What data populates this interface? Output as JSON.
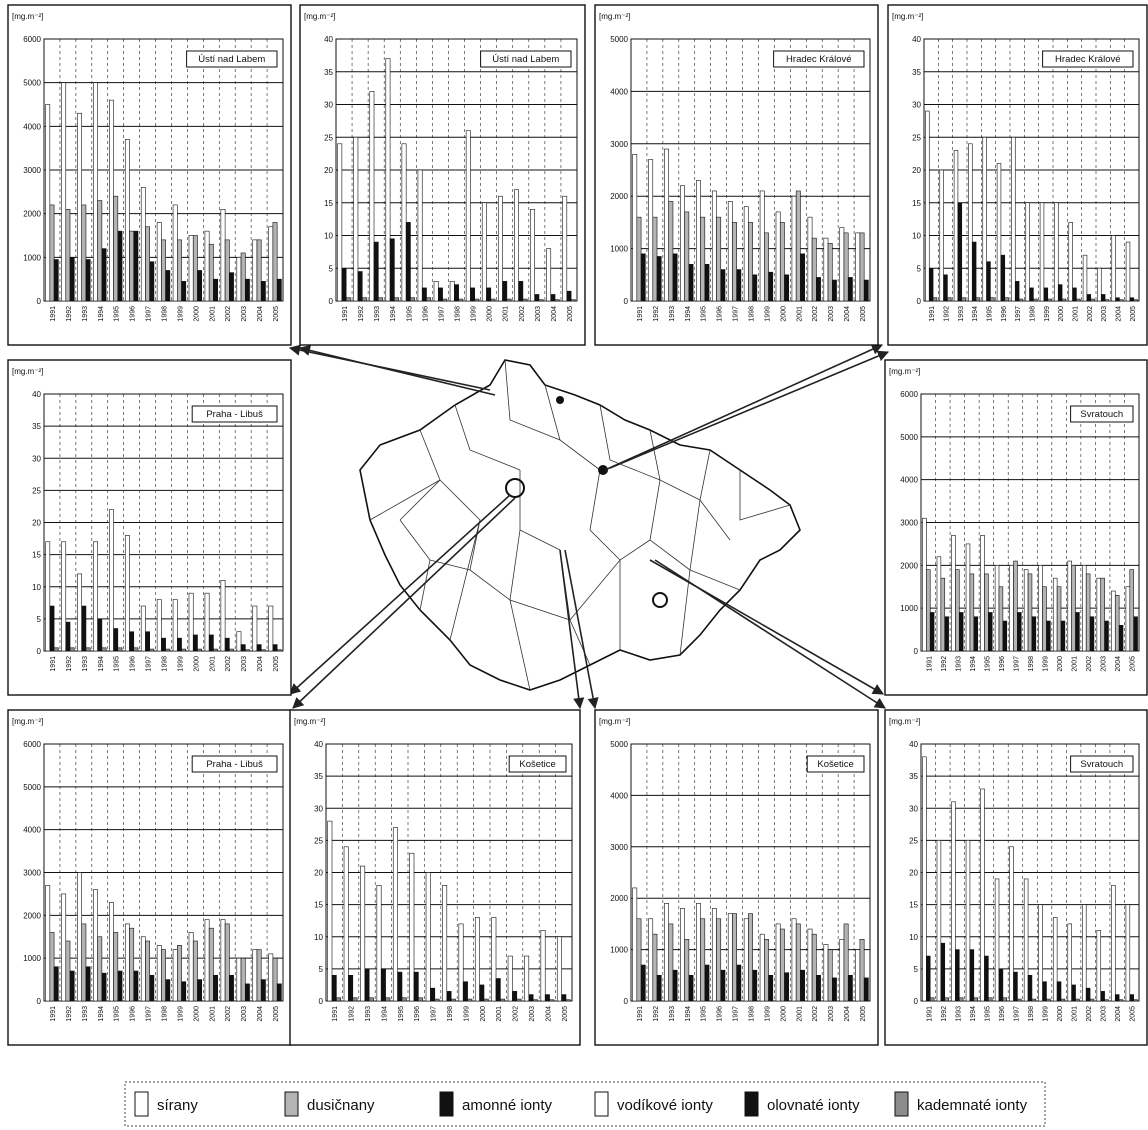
{
  "charts": [
    {
      "type": "bar",
      "title": "Ústí nad Labem",
      "ylabel": "[mg.m⁻²]",
      "ylim": [
        0,
        6000
      ],
      "yticks": [
        0,
        1000,
        2000,
        3000,
        4000,
        5000,
        6000
      ],
      "grid": true,
      "legend_items": [
        0,
        1,
        2
      ],
      "categories": [
        "1991",
        "1992",
        "1993",
        "1994",
        "1995",
        "1996",
        "1997",
        "1998",
        "1999",
        "2000",
        "2001",
        "2002",
        "2003",
        "2004",
        "2005"
      ],
      "series": [
        {
          "values": [
            4500,
            5000,
            4300,
            5000,
            4600,
            3700,
            2600,
            1800,
            2200,
            1500,
            1600,
            2100,
            1000,
            1400,
            1700
          ]
        },
        {
          "values": [
            2200,
            2100,
            2200,
            2300,
            2400,
            1600,
            1700,
            1400,
            1400,
            1500,
            1300,
            1400,
            1100,
            1400,
            1800
          ]
        },
        {
          "values": [
            950,
            1000,
            950,
            1200,
            1600,
            1600,
            900,
            700,
            450,
            700,
            500,
            650,
            500,
            450,
            500
          ]
        }
      ]
    },
    {
      "type": "bar",
      "title": "Ústí nad Labem",
      "ylabel": "[mg.m⁻²]",
      "ylim": [
        0,
        40
      ],
      "yticks": [
        0,
        5,
        10,
        15,
        20,
        25,
        30,
        35,
        40
      ],
      "grid": true,
      "legend_items": [
        3,
        4,
        5
      ],
      "categories": [
        "1991",
        "1992",
        "1993",
        "1994",
        "1995",
        "1996",
        "1997",
        "1998",
        "1999",
        "2000",
        "2001",
        "2002",
        "2003",
        "2004",
        "2005"
      ],
      "series": [
        {
          "values": [
            24,
            25,
            32,
            37,
            24,
            20,
            3,
            3,
            26,
            15,
            16,
            17,
            14,
            8,
            16
          ]
        },
        {
          "values": [
            5,
            4.5,
            9,
            9.5,
            12,
            2,
            2,
            2.5,
            2,
            2,
            3,
            3,
            1,
            1,
            1.5
          ]
        },
        {
          "values": [
            0.5,
            0.5,
            0.5,
            0.5,
            0.5,
            0.5,
            0.3,
            0.3,
            0.3,
            0.3,
            0.3,
            0.3,
            0.2,
            0.2,
            0.2
          ]
        }
      ]
    },
    {
      "type": "bar",
      "title": "Hradec Králové",
      "ylabel": "[mg.m⁻²]",
      "ylim": [
        0,
        5000
      ],
      "yticks": [
        0,
        1000,
        2000,
        3000,
        4000,
        5000
      ],
      "grid": true,
      "legend_items": [
        0,
        1,
        2
      ],
      "categories": [
        "1991",
        "1992",
        "1993",
        "1994",
        "1995",
        "1996",
        "1997",
        "1998",
        "1999",
        "2000",
        "2001",
        "2002",
        "2003",
        "2004",
        "2005"
      ],
      "series": [
        {
          "values": [
            2800,
            2700,
            2900,
            2200,
            2300,
            2100,
            1900,
            1800,
            2100,
            1700,
            2000,
            1600,
            1200,
            1400,
            1300
          ]
        },
        {
          "values": [
            1600,
            1600,
            1900,
            1700,
            1600,
            1600,
            1500,
            1500,
            1300,
            1500,
            2100,
            1200,
            1100,
            1300,
            1300
          ]
        },
        {
          "values": [
            900,
            850,
            900,
            700,
            700,
            600,
            600,
            500,
            550,
            500,
            900,
            450,
            400,
            450,
            400
          ]
        }
      ]
    },
    {
      "type": "bar",
      "title": "Hradec Králové",
      "ylabel": "[mg.m⁻²]",
      "ylim": [
        0,
        40
      ],
      "yticks": [
        0,
        5,
        10,
        15,
        20,
        25,
        30,
        35,
        40
      ],
      "grid": true,
      "legend_items": [
        3,
        4,
        5
      ],
      "categories": [
        "1991",
        "1992",
        "1993",
        "1994",
        "1995",
        "1996",
        "1997",
        "1998",
        "1999",
        "2000",
        "2001",
        "2002",
        "2003",
        "2004",
        "2005"
      ],
      "series": [
        {
          "values": [
            29,
            20,
            23,
            24,
            25,
            21,
            25,
            15,
            15,
            15,
            12,
            7,
            5,
            10,
            9
          ]
        },
        {
          "values": [
            5,
            4,
            15,
            9,
            6,
            7,
            3,
            2,
            2,
            2.5,
            2,
            1,
            1,
            0.5,
            0.5
          ]
        },
        {
          "values": [
            0.5,
            0.5,
            0.5,
            0.5,
            0.5,
            0.5,
            0.3,
            0.3,
            0.3,
            0.3,
            0.3,
            0.3,
            0.2,
            0.2,
            0.2
          ]
        }
      ]
    },
    {
      "type": "bar",
      "title": "Praha - Libuš",
      "ylabel": "[mg.m⁻²]",
      "ylim": [
        0,
        40
      ],
      "yticks": [
        0,
        5,
        10,
        15,
        20,
        25,
        30,
        35,
        40
      ],
      "grid": true,
      "legend_items": [
        3,
        4,
        5
      ],
      "categories": [
        "1991",
        "1992",
        "1993",
        "1994",
        "1995",
        "1996",
        "1997",
        "1998",
        "1999",
        "2000",
        "2001",
        "2002",
        "2003",
        "2004",
        "2005"
      ],
      "series": [
        {
          "values": [
            17,
            17,
            12,
            17,
            22,
            18,
            7,
            8,
            8,
            9,
            9,
            11,
            3,
            7,
            7
          ]
        },
        {
          "values": [
            7,
            4.5,
            7,
            5,
            3.5,
            3,
            3,
            2,
            2,
            2.5,
            2.5,
            2,
            1,
            1,
            1
          ]
        },
        {
          "values": [
            0.5,
            0.5,
            0.5,
            0.5,
            0.5,
            0.5,
            0.3,
            0.3,
            0.3,
            0.3,
            0.3,
            0.3,
            0.2,
            0.2,
            0.2
          ]
        }
      ]
    },
    {
      "type": "bar",
      "title": "Svratouch",
      "ylabel": "[mg.m⁻²]",
      "ylim": [
        0,
        6000
      ],
      "yticks": [
        0,
        1000,
        2000,
        3000,
        4000,
        5000,
        6000
      ],
      "grid": true,
      "legend_items": [
        0,
        1,
        2
      ],
      "categories": [
        "1991",
        "1992",
        "1993",
        "1994",
        "1995",
        "1996",
        "1997",
        "1998",
        "1999",
        "2000",
        "2001",
        "2002",
        "2003",
        "2004",
        "2005"
      ],
      "series": [
        {
          "values": [
            3100,
            2200,
            2700,
            2500,
            2700,
            2000,
            2000,
            1900,
            2000,
            1700,
            2100,
            2000,
            1700,
            1400,
            1500
          ]
        },
        {
          "values": [
            1900,
            1700,
            1900,
            1800,
            1800,
            1500,
            2100,
            1800,
            1500,
            1500,
            2000,
            1800,
            1700,
            1300,
            1900
          ]
        },
        {
          "values": [
            900,
            800,
            900,
            800,
            900,
            700,
            900,
            800,
            700,
            700,
            900,
            800,
            700,
            600,
            800
          ]
        }
      ]
    },
    {
      "type": "bar",
      "title": "Praha - Libuš",
      "ylabel": "[mg.m⁻²]",
      "ylim": [
        0,
        6000
      ],
      "yticks": [
        0,
        1000,
        2000,
        3000,
        4000,
        5000,
        6000
      ],
      "grid": true,
      "legend_items": [
        0,
        1,
        2
      ],
      "categories": [
        "1991",
        "1992",
        "1993",
        "1994",
        "1995",
        "1996",
        "1997",
        "1998",
        "1999",
        "2000",
        "2001",
        "2002",
        "2003",
        "2004",
        "2005"
      ],
      "series": [
        {
          "values": [
            2700,
            2500,
            3000,
            2600,
            2300,
            1800,
            1500,
            1300,
            1200,
            1600,
            1900,
            1900,
            1000,
            1200,
            1100
          ]
        },
        {
          "values": [
            1600,
            1400,
            1800,
            1500,
            1600,
            1700,
            1400,
            1200,
            1300,
            1400,
            1700,
            1800,
            1000,
            1200,
            1000
          ]
        },
        {
          "values": [
            800,
            700,
            800,
            650,
            700,
            700,
            600,
            500,
            450,
            500,
            600,
            600,
            400,
            500,
            400
          ]
        }
      ]
    },
    {
      "type": "bar",
      "title": "Košetice",
      "ylabel": "[mg.m⁻²]",
      "ylim": [
        0,
        40
      ],
      "yticks": [
        0,
        5,
        10,
        15,
        20,
        25,
        30,
        35,
        40
      ],
      "grid": true,
      "legend_items": [
        3,
        4,
        5
      ],
      "categories": [
        "1991",
        "1992",
        "1993",
        "1994",
        "1995",
        "1996",
        "1997",
        "1998",
        "1999",
        "2000",
        "2001",
        "2002",
        "2003",
        "2004",
        "2005"
      ],
      "series": [
        {
          "values": [
            28,
            24,
            21,
            18,
            27,
            23,
            20,
            18,
            12,
            13,
            13,
            7,
            7,
            11,
            10
          ]
        },
        {
          "values": [
            4,
            4,
            5,
            5,
            4.5,
            4.5,
            2,
            1.5,
            3,
            2.5,
            3.5,
            1.5,
            1,
            1,
            1
          ]
        },
        {
          "values": [
            0.5,
            0.5,
            0.5,
            0.5,
            0.5,
            0.5,
            0.3,
            0.3,
            0.3,
            0.3,
            0.3,
            0.3,
            0.2,
            0.2,
            0.2
          ]
        }
      ]
    },
    {
      "type": "bar",
      "title": "Košetice",
      "ylabel": "[mg.m⁻²]",
      "ylim": [
        0,
        5000
      ],
      "yticks": [
        0,
        1000,
        2000,
        3000,
        4000,
        5000
      ],
      "grid": true,
      "legend_items": [
        0,
        1,
        2
      ],
      "categories": [
        "1991",
        "1992",
        "1993",
        "1994",
        "1995",
        "1996",
        "1997",
        "1998",
        "1999",
        "2000",
        "2001",
        "2002",
        "2003",
        "2004",
        "2005"
      ],
      "series": [
        {
          "values": [
            2200,
            1600,
            1900,
            1800,
            1900,
            1800,
            1700,
            1600,
            1300,
            1500,
            1600,
            1400,
            1100,
            1200,
            1000
          ]
        },
        {
          "values": [
            1600,
            1300,
            1500,
            1200,
            1600,
            1600,
            1700,
            1700,
            1200,
            1400,
            1500,
            1300,
            1000,
            1500,
            1200
          ]
        },
        {
          "values": [
            700,
            500,
            600,
            500,
            700,
            600,
            700,
            600,
            500,
            550,
            600,
            500,
            450,
            500,
            450
          ]
        }
      ]
    },
    {
      "type": "bar",
      "title": "Svratouch",
      "ylabel": "[mg.m⁻²]",
      "ylim": [
        0,
        40
      ],
      "yticks": [
        0,
        5,
        10,
        15,
        20,
        25,
        30,
        35,
        40
      ],
      "grid": true,
      "legend_items": [
        3,
        4,
        5
      ],
      "categories": [
        "1991",
        "1992",
        "1993",
        "1994",
        "1995",
        "1996",
        "1997",
        "1998",
        "1999",
        "2000",
        "2001",
        "2002",
        "2003",
        "2004",
        "2005"
      ],
      "series": [
        {
          "values": [
            38,
            25,
            31,
            25,
            33,
            19,
            24,
            19,
            15,
            13,
            12,
            15,
            11,
            18,
            15
          ]
        },
        {
          "values": [
            7,
            9,
            8,
            8,
            7,
            5,
            4.5,
            4,
            3,
            3,
            2.5,
            2,
            1.5,
            1,
            1
          ]
        },
        {
          "values": [
            0.5,
            0.5,
            0.5,
            0.5,
            0.5,
            0.5,
            0.3,
            0.3,
            0.3,
            0.3,
            0.3,
            0.3,
            0.2,
            0.2,
            0.2
          ]
        }
      ]
    }
  ],
  "legend": [
    {
      "name": "sírany",
      "color": "#ffffff"
    },
    {
      "name": "dusičnany",
      "color": "#b4b4b4"
    },
    {
      "name": "amonné ionty",
      "color": "#111111"
    },
    {
      "name": "vodíkové ionty",
      "color": "#ffffff"
    },
    {
      "name": "olovnaté ionty",
      "color": "#111111"
    },
    {
      "name": "kademnaté ionty",
      "color": "#8c8c8c"
    }
  ]
}
